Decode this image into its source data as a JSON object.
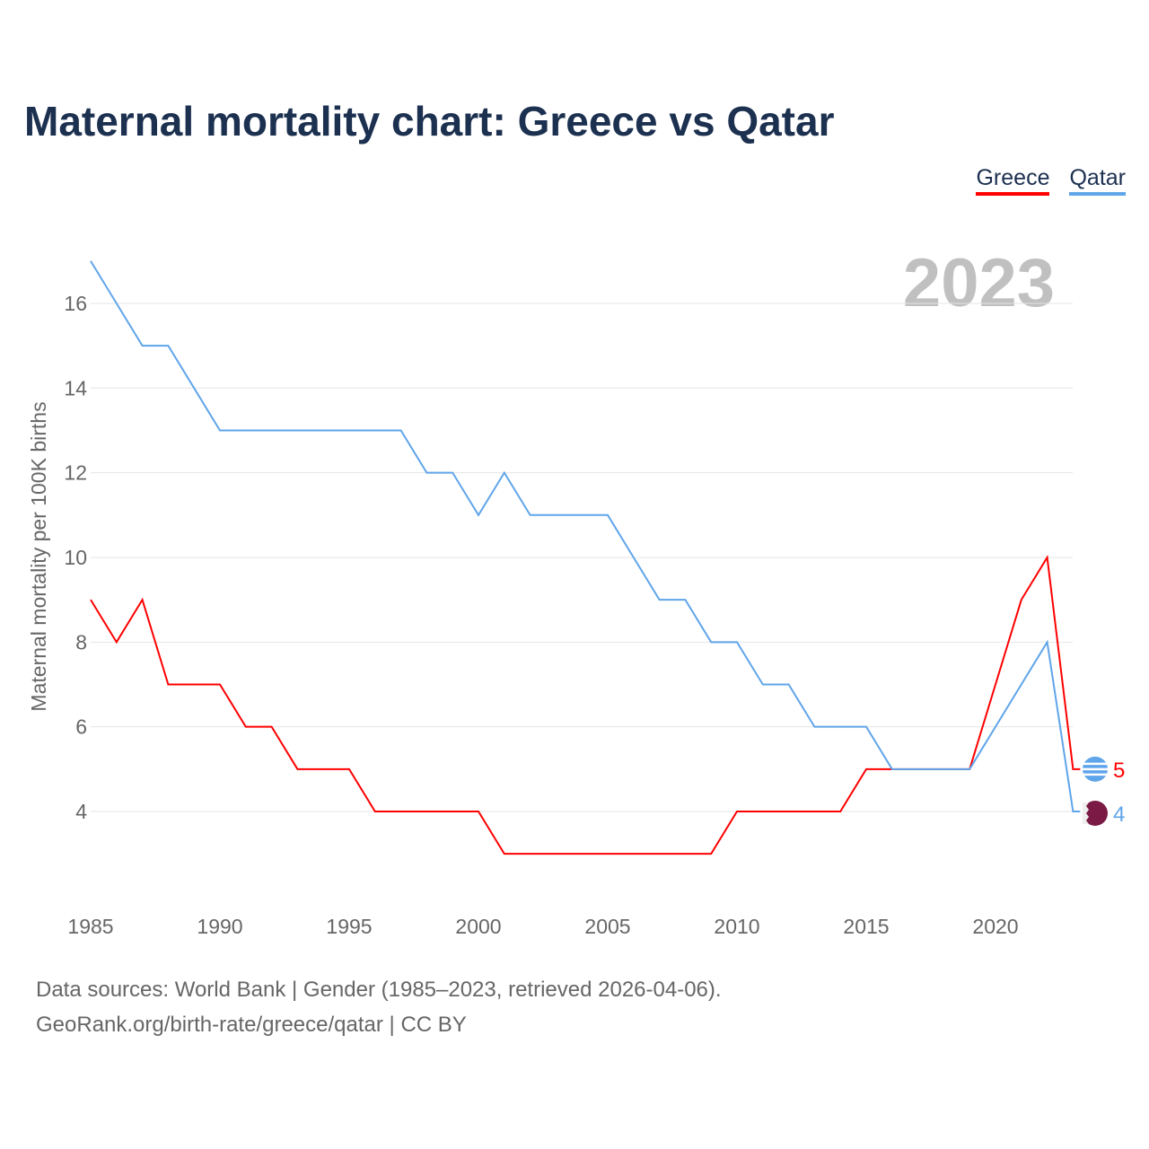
{
  "title": "Maternal mortality chart: Greece vs Qatar",
  "year_label": "2023",
  "source_line1": "Data sources: World Bank | Gender (1985–2023, retrieved 2026-04-06).",
  "source_line2": "GeoRank.org/birth-rate/greece/qatar | CC BY",
  "chart_data": {
    "type": "line",
    "title": "Maternal mortality chart: Greece vs Qatar",
    "xlabel": "",
    "ylabel": "Maternal mortality per 100K births",
    "x": [
      1985,
      1986,
      1987,
      1988,
      1989,
      1990,
      1991,
      1992,
      1993,
      1994,
      1995,
      1996,
      1997,
      1998,
      1999,
      2000,
      2001,
      2002,
      2003,
      2004,
      2005,
      2006,
      2007,
      2008,
      2009,
      2010,
      2011,
      2012,
      2013,
      2014,
      2015,
      2016,
      2017,
      2018,
      2019,
      2020,
      2021,
      2022,
      2023
    ],
    "xticks": [
      1985,
      1990,
      1995,
      2000,
      2005,
      2010,
      2015,
      2020
    ],
    "yticks": [
      4,
      6,
      8,
      10,
      12,
      14,
      16
    ],
    "xlim": [
      1985,
      2023
    ],
    "ylim": [
      2,
      17.5
    ],
    "grid": true,
    "legend": "top-right",
    "series": [
      {
        "name": "Greece",
        "color": "#ff0000",
        "end_label": "5",
        "values": [
          9,
          8,
          9,
          7,
          7,
          7,
          6,
          6,
          5,
          5,
          5,
          4,
          4,
          4,
          4,
          4,
          3,
          3,
          3,
          3,
          3,
          3,
          3,
          3,
          3,
          4,
          4,
          4,
          4,
          4,
          5,
          5,
          5,
          5,
          5,
          7,
          9,
          10,
          5
        ]
      },
      {
        "name": "Qatar",
        "color": "#5fa5ea",
        "end_label": "4",
        "values": [
          17,
          16,
          15,
          15,
          14,
          13,
          13,
          13,
          13,
          13,
          13,
          13,
          13,
          12,
          12,
          11,
          12,
          11,
          11,
          11,
          11,
          10,
          9,
          9,
          8,
          8,
          7,
          7,
          6,
          6,
          6,
          5,
          5,
          5,
          5,
          6,
          7,
          8,
          4
        ]
      }
    ]
  }
}
